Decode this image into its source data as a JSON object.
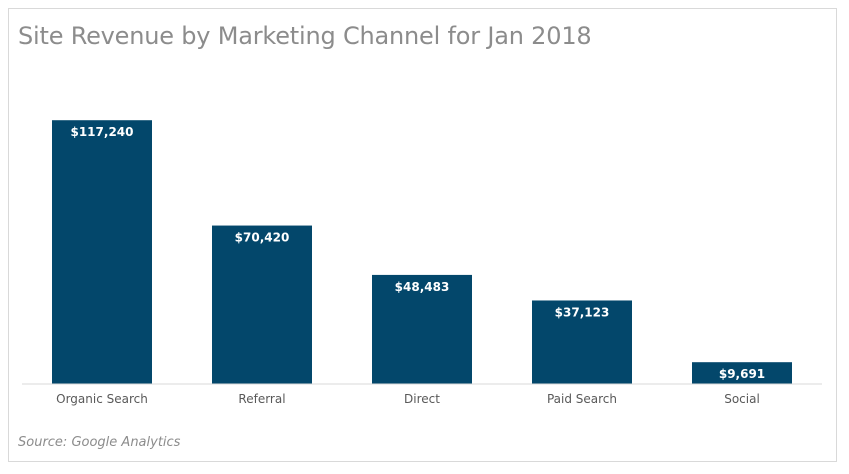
{
  "chart_data": {
    "type": "bar",
    "title": "Site Revenue by Marketing Channel for Jan 2018",
    "categories": [
      "Organic Search",
      "Referral",
      "Direct",
      "Paid Search",
      "Social"
    ],
    "values": [
      117240,
      70420,
      48483,
      37123,
      9691
    ],
    "data_labels": [
      "$117,240",
      "$70,420",
      "$48,483",
      "$37,123",
      "$9,691"
    ],
    "ylim": [
      0,
      120000
    ],
    "grid": false,
    "bar_color": "#03476b",
    "source": "Source: Google Analytics"
  }
}
